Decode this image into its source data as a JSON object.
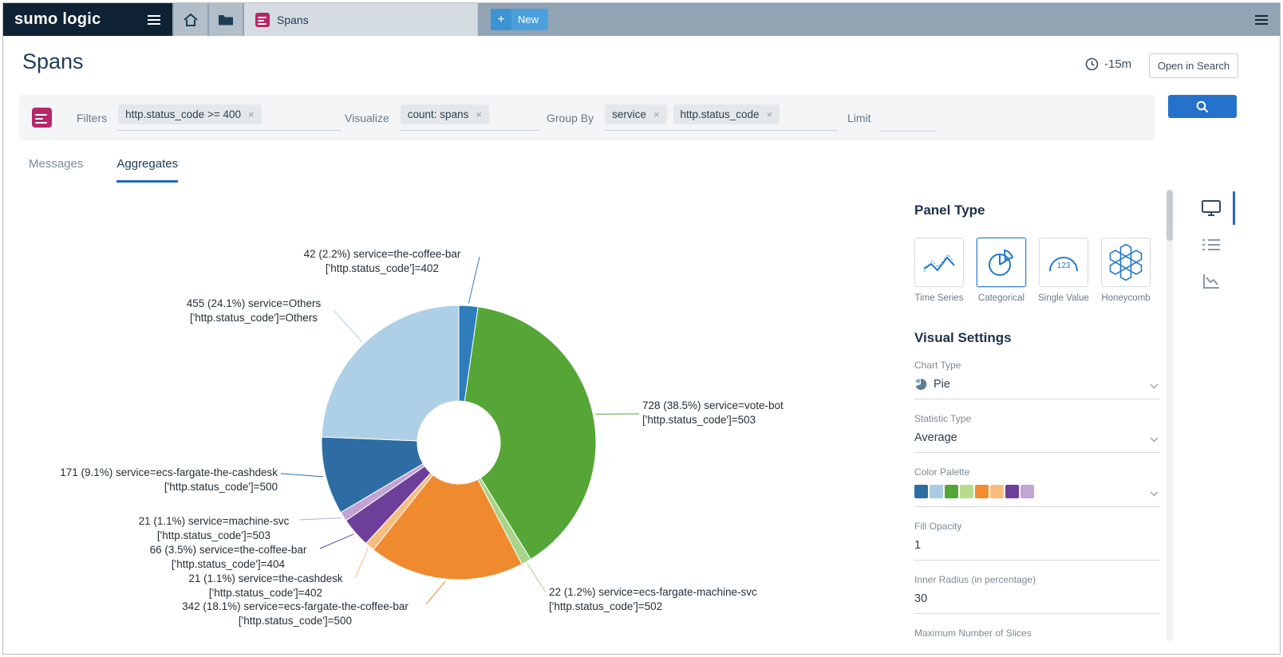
{
  "topbar": {
    "brand": "sumo logic",
    "active_tab": "Spans",
    "new_label": "New"
  },
  "header": {
    "title": "Spans",
    "time_range": "-15m",
    "open_in_search": "Open in Search"
  },
  "query": {
    "filters_label": "Filters",
    "filters_chips": [
      "http.status_code >= 400"
    ],
    "visualize_label": "Visualize",
    "visualize_chips": [
      "count: spans"
    ],
    "group_by_label": "Group By",
    "group_by_chips": [
      "service",
      "http.status_code"
    ],
    "limit_label": "Limit"
  },
  "tabs": {
    "messages": "Messages",
    "aggregates": "Aggregates"
  },
  "chart_data": {
    "type": "pie",
    "title": "",
    "inner_radius_pct": 30,
    "legend": "none",
    "slices": [
      {
        "name": "service=the-coffee-bar ['http.status_code']=402",
        "value": 42,
        "pct": 2.2,
        "color": "#2d7dbd",
        "label_line1": "42 (2.2%) service=the-coffee-bar",
        "label_line2": "['http.status_code']=402"
      },
      {
        "name": "service=vote-bot ['http.status_code']=503",
        "value": 728,
        "pct": 38.5,
        "color": "#55a636",
        "label_line1": "728 (38.5%) service=vote-bot",
        "label_line2": "['http.status_code']=503"
      },
      {
        "name": "service=ecs-fargate-machine-svc ['http.status_code']=502",
        "value": 22,
        "pct": 1.2,
        "color": "#a9d489",
        "label_line1": "22 (1.2%) service=ecs-fargate-machine-svc",
        "label_line2": "['http.status_code']=502"
      },
      {
        "name": "service=ecs-fargate-the-coffee-bar ['http.status_code']=500",
        "value": 342,
        "pct": 18.1,
        "color": "#ef8a2e",
        "label_line1": "342 (18.1%) service=ecs-fargate-the-coffee-bar",
        "label_line2": "['http.status_code']=500"
      },
      {
        "name": "service=the-cashdesk ['http.status_code']=402",
        "value": 21,
        "pct": 1.1,
        "color": "#f6bd7e",
        "label_line1": "21 (1.1%) service=the-cashdesk",
        "label_line2": "['http.status_code']=402"
      },
      {
        "name": "service=the-coffee-bar ['http.status_code']=404",
        "value": 66,
        "pct": 3.5,
        "color": "#6d3f98",
        "label_line1": "66 (3.5%) service=the-coffee-bar",
        "label_line2": "['http.status_code']=404"
      },
      {
        "name": "service=machine-svc ['http.status_code']=503",
        "value": 21,
        "pct": 1.1,
        "color": "#c2a3d4",
        "label_line1": "21 (1.1%) service=machine-svc",
        "label_line2": "['http.status_code']=503"
      },
      {
        "name": "service=ecs-fargate-the-cashdesk ['http.status_code']=500",
        "value": 171,
        "pct": 9.1,
        "color": "#2e6da4",
        "label_line1": "171 (9.1%) service=ecs-fargate-the-cashdesk",
        "label_line2": "['http.status_code']=500"
      },
      {
        "name": "service=Others ['http.status_code']=Others",
        "value": 455,
        "pct": 24.1,
        "color": "#aed0e6",
        "label_line1": "455 (24.1%) service=Others",
        "label_line2": "['http.status_code']=Others"
      }
    ]
  },
  "panel": {
    "panel_type_title": "Panel Type",
    "types": [
      {
        "label": "Time Series",
        "selected": false
      },
      {
        "label": "Categorical",
        "selected": true
      },
      {
        "label": "Single Value",
        "selected": false
      },
      {
        "label": "Honeycomb",
        "selected": false
      }
    ],
    "gauge_text": "123",
    "visual_settings_title": "Visual Settings",
    "chart_type_label": "Chart Type",
    "chart_type_value": "Pie",
    "statistic_type_label": "Statistic Type",
    "statistic_type_value": "Average",
    "color_palette_label": "Color Palette",
    "palette": [
      "#2e6da4",
      "#a9cbe2",
      "#55a636",
      "#b5db8b",
      "#f28c2e",
      "#f8bd7e",
      "#6d3f98",
      "#c3a5d5"
    ],
    "fill_opacity_label": "Fill Opacity",
    "fill_opacity_value": "1",
    "inner_radius_label": "Inner Radius (in percentage)",
    "inner_radius_value": "30",
    "max_slices_label": "Maximum Number of Slices"
  }
}
